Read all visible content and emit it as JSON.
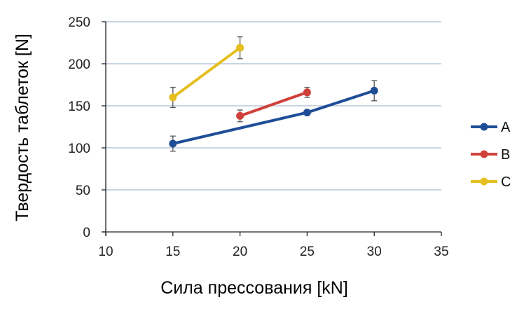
{
  "chart_data": {
    "type": "line",
    "xlabel": "Сила прессования [kN]",
    "ylabel": "Твердость таблеток [N]",
    "xlim": [
      10,
      35
    ],
    "ylim": [
      0,
      250
    ],
    "x_ticks": [
      10,
      15,
      20,
      25,
      30,
      35
    ],
    "y_ticks": [
      0,
      50,
      100,
      150,
      200,
      250
    ],
    "grid": "horizontal",
    "legend_position": "right",
    "series": [
      {
        "name": "A",
        "color": "#1f4e97",
        "points": [
          {
            "x": 15,
            "y": 105,
            "err": 9
          },
          {
            "x": 25,
            "y": 142,
            "err": 0
          },
          {
            "x": 30,
            "y": 168,
            "err": 12
          }
        ]
      },
      {
        "name": "B",
        "color": "#d0403b",
        "points": [
          {
            "x": 20,
            "y": 138,
            "err": 7
          },
          {
            "x": 25,
            "y": 166,
            "err": 6
          }
        ]
      },
      {
        "name": "C",
        "color": "#e5bf1f",
        "points": [
          {
            "x": 15,
            "y": 160,
            "err": 12
          },
          {
            "x": 20,
            "y": 219,
            "err": 13
          }
        ]
      }
    ]
  }
}
